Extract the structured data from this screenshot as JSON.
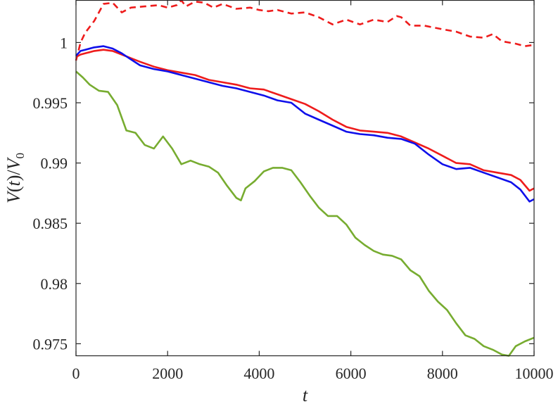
{
  "chart_data": {
    "type": "line",
    "title": "",
    "xlabel": "t",
    "ylabel": {
      "parts": [
        "V",
        "(",
        "t",
        ")/",
        "V",
        "0"
      ]
    },
    "xlim": [
      0,
      10000
    ],
    "ylim": [
      0.974,
      1.0035
    ],
    "grid": false,
    "xticks": [
      0,
      2000,
      4000,
      6000,
      8000,
      10000
    ],
    "yticks": [
      0.975,
      0.98,
      0.985,
      0.99,
      0.995,
      1
    ],
    "xtick_labels": [
      "0",
      "2000",
      "4000",
      "6000",
      "8000",
      "10000"
    ],
    "ytick_labels": [
      "0.975",
      "0.98",
      "0.985",
      "0.99",
      "0.995",
      "1"
    ],
    "series": [
      {
        "color": "#ee1c1c",
        "style": "dashed",
        "x": [
          0,
          100,
          200,
          400,
          600,
          800,
          1000,
          1200,
          1500,
          1800,
          2000,
          2200,
          2300,
          2400,
          2600,
          2800,
          3000,
          3200,
          3500,
          3800,
          4000,
          4200,
          4400,
          4700,
          5000,
          5300,
          5600,
          5900,
          6200,
          6500,
          6800,
          7000,
          7100,
          7300,
          7600,
          8000,
          8300,
          8600,
          8900,
          9100,
          9300,
          9600,
          9800,
          10000
        ],
        "y": [
          0.9985,
          1.0,
          1.0008,
          1.0018,
          1.0032,
          1.0033,
          1.0025,
          1.0029,
          1.003,
          1.0031,
          1.0029,
          1.0031,
          1.0035,
          1.003,
          1.0034,
          1.0033,
          1.0029,
          1.0032,
          1.0028,
          1.0029,
          1.0027,
          1.0026,
          1.0027,
          1.0024,
          1.0025,
          1.0021,
          1.0015,
          1.0019,
          1.0015,
          1.0019,
          1.0017,
          1.0022,
          1.0021,
          1.0014,
          1.0014,
          1.0011,
          1.0009,
          1.0005,
          1.0004,
          1.0007,
          1.0001,
          0.9999,
          0.9997,
          0.9998
        ]
      },
      {
        "color": "#ee1c1c",
        "style": "solid",
        "x": [
          0,
          100,
          200,
          400,
          600,
          800,
          1000,
          1200,
          1400,
          1700,
          2000,
          2300,
          2600,
          2900,
          3200,
          3500,
          3800,
          4100,
          4400,
          4700,
          5000,
          5300,
          5600,
          5900,
          6200,
          6500,
          6800,
          7100,
          7400,
          7700,
          8000,
          8300,
          8600,
          8900,
          9200,
          9500,
          9700,
          9900,
          10000
        ],
        "y": [
          0.9988,
          0.999,
          0.9991,
          0.9993,
          0.9994,
          0.9993,
          0.999,
          0.9987,
          0.9984,
          0.998,
          0.9977,
          0.9975,
          0.9973,
          0.9969,
          0.9967,
          0.9965,
          0.9962,
          0.9961,
          0.9957,
          0.9953,
          0.9949,
          0.9943,
          0.9936,
          0.993,
          0.9927,
          0.9926,
          0.9925,
          0.9922,
          0.9917,
          0.9912,
          0.9906,
          0.99,
          0.9899,
          0.9894,
          0.9892,
          0.989,
          0.9886,
          0.9877,
          0.9879
        ]
      },
      {
        "color": "#0f0fea",
        "style": "solid",
        "x": [
          0,
          100,
          200,
          400,
          600,
          800,
          1000,
          1200,
          1400,
          1700,
          2000,
          2300,
          2600,
          2900,
          3200,
          3500,
          3800,
          4100,
          4400,
          4700,
          5000,
          5300,
          5600,
          5900,
          6200,
          6500,
          6800,
          7100,
          7400,
          7700,
          8000,
          8300,
          8600,
          8900,
          9200,
          9500,
          9700,
          9900,
          10000
        ],
        "y": [
          0.9989,
          0.9993,
          0.9994,
          0.9996,
          0.9997,
          0.9995,
          0.9991,
          0.9986,
          0.9981,
          0.9978,
          0.9976,
          0.9973,
          0.997,
          0.9967,
          0.9964,
          0.9962,
          0.9959,
          0.9956,
          0.9952,
          0.995,
          0.9941,
          0.9936,
          0.9931,
          0.9926,
          0.9924,
          0.9923,
          0.9921,
          0.992,
          0.9916,
          0.9907,
          0.9899,
          0.9895,
          0.9896,
          0.9892,
          0.9888,
          0.9884,
          0.9878,
          0.9868,
          0.987
        ]
      },
      {
        "color": "#77ac30",
        "style": "solid",
        "x": [
          0,
          150,
          300,
          500,
          700,
          900,
          1100,
          1300,
          1500,
          1700,
          1900,
          2100,
          2300,
          2500,
          2700,
          2900,
          3100,
          3300,
          3500,
          3600,
          3700,
          3900,
          4100,
          4300,
          4500,
          4700,
          4900,
          5100,
          5300,
          5500,
          5700,
          5900,
          6100,
          6300,
          6500,
          6700,
          6900,
          7100,
          7300,
          7500,
          7700,
          7900,
          8100,
          8300,
          8500,
          8700,
          8900,
          9100,
          9300,
          9450,
          9600,
          9800,
          10000
        ],
        "y": [
          0.9976,
          0.9971,
          0.9965,
          0.996,
          0.9959,
          0.9948,
          0.9927,
          0.9925,
          0.9915,
          0.9912,
          0.9922,
          0.9912,
          0.9899,
          0.9902,
          0.9899,
          0.9897,
          0.9892,
          0.9881,
          0.9871,
          0.9869,
          0.9879,
          0.9885,
          0.9893,
          0.9896,
          0.9896,
          0.9894,
          0.9884,
          0.9873,
          0.9863,
          0.9856,
          0.9856,
          0.9849,
          0.9838,
          0.9832,
          0.9827,
          0.9824,
          0.9823,
          0.982,
          0.9811,
          0.9806,
          0.9794,
          0.9785,
          0.9778,
          0.9767,
          0.9757,
          0.9754,
          0.9748,
          0.9745,
          0.9741,
          0.974,
          0.9748,
          0.9752,
          0.9755
        ]
      }
    ]
  }
}
